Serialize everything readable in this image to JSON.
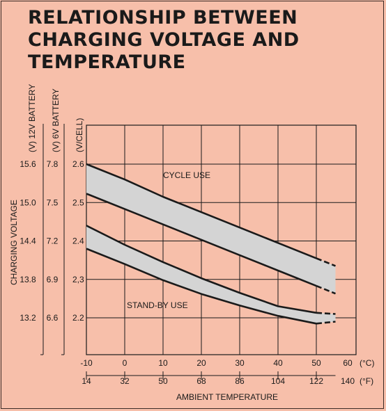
{
  "title_lines": [
    "RELATIONSHIP BETWEEN",
    "CHARGING VOLTAGE AND",
    "TEMPERATURE"
  ],
  "chart_data": {
    "type": "area",
    "title": "RELATIONSHIP BETWEEN CHARGING VOLTAGE AND TEMPERATURE",
    "xlabel": "AMBIENT TEMPERATURE",
    "ylabel": "CHARGING VOLTAGE",
    "x_unit": "(°C)",
    "x2_unit": "(°F)",
    "axis_titles": {
      "cell": "(V/CELL)",
      "six_v": "(V) 6V BATTERY",
      "twelve_v": "(V) 12V BATTERY"
    },
    "xlim": [
      -10,
      55
    ],
    "ylim": [
      2.1,
      2.67
    ],
    "x_ticks": [
      "-10",
      "0",
      "10",
      "20",
      "30",
      "40",
      "50",
      "60"
    ],
    "x2_ticks": [
      "14",
      "32",
      "50",
      "68",
      "86",
      "104",
      "122",
      "140"
    ],
    "y_ticks_cell": [
      {
        "value": 2.6,
        "label": "2.6"
      },
      {
        "value": 2.5,
        "label": "2.5"
      },
      {
        "value": 2.4,
        "label": "2.4"
      },
      {
        "value": 2.3,
        "label": "2,3"
      },
      {
        "value": 2.2,
        "label": "2.2"
      }
    ],
    "y_ticks_6v": [
      "7.8",
      "7.5",
      "7.2",
      "6.9",
      "6.6"
    ],
    "y_ticks_12v": [
      "15.6",
      "15.0",
      "14.4",
      "13.8",
      "13.2"
    ],
    "grid": true,
    "series": [
      {
        "name": "CYCLE USE",
        "upper": {
          "x": [
            -10,
            0,
            10,
            20,
            30,
            40,
            50,
            55
          ],
          "y": [
            2.6,
            2.56,
            2.515,
            2.475,
            2.435,
            2.395,
            2.355,
            2.335
          ]
        },
        "lower": {
          "x": [
            -10,
            0,
            10,
            20,
            30,
            40,
            50,
            55
          ],
          "y": [
            2.523,
            2.483,
            2.443,
            2.403,
            2.363,
            2.323,
            2.283,
            2.263
          ]
        }
      },
      {
        "name": "STAND-BY USE",
        "upper": {
          "x": [
            -10,
            0,
            10,
            20,
            30,
            40,
            50,
            55
          ],
          "y": [
            2.44,
            2.39,
            2.345,
            2.303,
            2.265,
            2.23,
            2.213,
            2.21
          ]
        },
        "lower": {
          "x": [
            -10,
            0,
            10,
            20,
            30,
            40,
            50,
            55
          ],
          "y": [
            2.38,
            2.34,
            2.298,
            2.262,
            2.232,
            2.205,
            2.185,
            2.19
          ]
        }
      }
    ],
    "band_color": "#d4d4d4",
    "line_color": "#1a1a1a",
    "background": "#f7bfaa"
  }
}
